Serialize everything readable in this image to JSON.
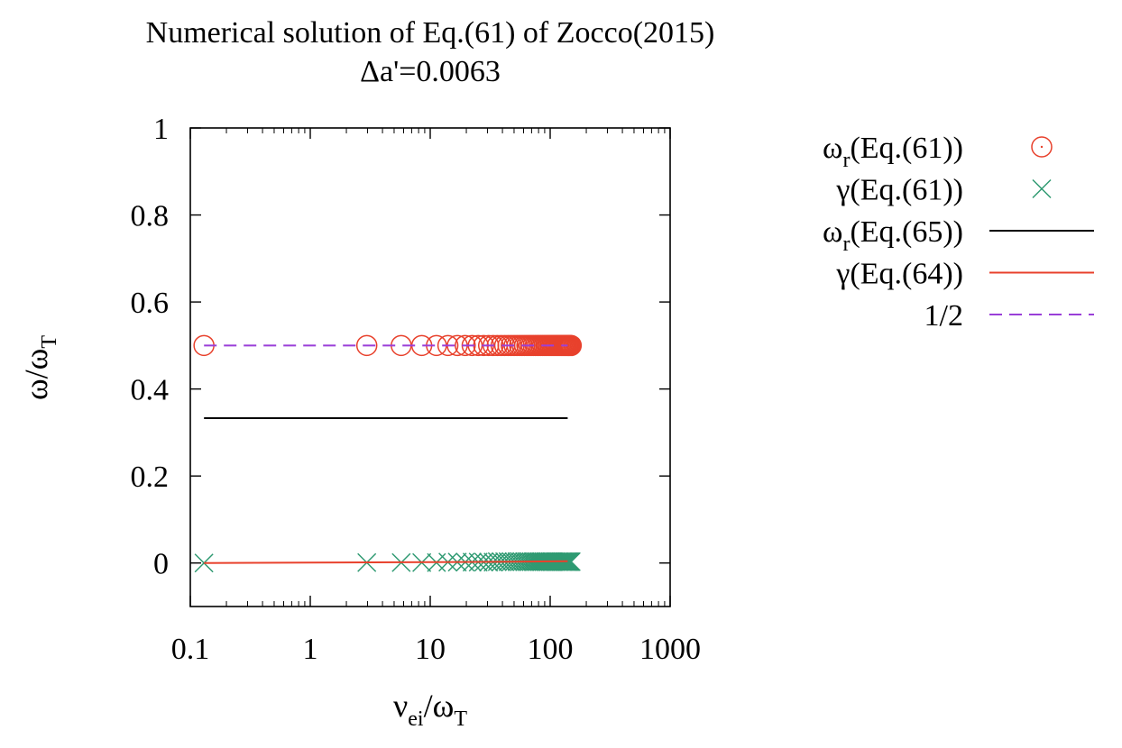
{
  "chart_data": {
    "type": "scatter",
    "title": "Numerical solution of Eq.(61) of Zocco(2015)",
    "subtitle": "Δa'=0.0063",
    "xlabel": {
      "main": "ν",
      "sub": "ei",
      "rest": "/ω",
      "sub2": "T"
    },
    "ylabel": {
      "main": "ω/ω",
      "sub": "T"
    },
    "xscale": "log",
    "xlim": [
      0.1,
      1000
    ],
    "ylim": [
      -0.1,
      1.0
    ],
    "xticks": [
      "0.1",
      "1",
      "10",
      "100",
      "1000"
    ],
    "yticks": [
      "0",
      "0.2",
      "0.4",
      "0.6",
      "0.8",
      "1"
    ],
    "legend_position": "outside-right",
    "series": [
      {
        "name": "ωr(Eq.(61))",
        "legend": {
          "main": "ω",
          "sub": "r",
          "rest": "(Eq.(61))"
        },
        "marker": "circle",
        "color": "#e8412c",
        "x": [
          0.13,
          2.96,
          5.73,
          8.5,
          11.27,
          14.04,
          16.81,
          19.58,
          22.35,
          25.12,
          27.9,
          30.67,
          33.44,
          36.21,
          38.98,
          41.75,
          44.52,
          47.29,
          50.06,
          52.83,
          55.6,
          58.37,
          61.14,
          63.91,
          66.68,
          69.45,
          72.22,
          75.0,
          77.77,
          80.54,
          83.31,
          86.08,
          88.85,
          91.62,
          94.39,
          97.16,
          99.93,
          102.7,
          105.47,
          108.24,
          111.01,
          113.78,
          116.55,
          119.32,
          122.1,
          124.87,
          127.64,
          130.41,
          133.18,
          135.95,
          138.72,
          141.49,
          144.26,
          147.03,
          149.8
        ],
        "y": [
          0.5,
          0.5,
          0.5,
          0.5,
          0.5,
          0.5,
          0.5,
          0.5,
          0.5,
          0.5,
          0.5,
          0.5,
          0.5,
          0.5,
          0.5,
          0.5,
          0.5,
          0.5,
          0.5,
          0.5,
          0.5,
          0.5,
          0.5,
          0.5,
          0.5,
          0.5,
          0.5,
          0.5,
          0.5,
          0.5,
          0.5,
          0.5,
          0.5,
          0.5,
          0.5,
          0.5,
          0.5,
          0.5,
          0.5,
          0.5,
          0.5,
          0.5,
          0.5,
          0.5,
          0.5,
          0.5,
          0.5,
          0.5,
          0.5,
          0.5,
          0.5,
          0.5,
          0.5,
          0.5,
          0.5
        ]
      },
      {
        "name": "γ(Eq.(61))",
        "legend": {
          "main": "γ(Eq.(61))",
          "sub": "",
          "rest": ""
        },
        "marker": "cross",
        "color": "#2f9a72",
        "x": [
          0.13,
          2.96,
          5.73,
          8.5,
          11.27,
          14.04,
          16.81,
          19.58,
          22.35,
          25.12,
          27.9,
          30.67,
          33.44,
          36.21,
          38.98,
          41.75,
          44.52,
          47.29,
          50.06,
          52.83,
          55.6,
          58.37,
          61.14,
          63.91,
          66.68,
          69.45,
          72.22,
          75.0,
          77.77,
          80.54,
          83.31,
          86.08,
          88.85,
          91.62,
          94.39,
          97.16,
          99.93,
          102.7,
          105.47,
          108.24,
          111.01,
          113.78,
          116.55,
          119.32,
          122.1,
          124.87,
          127.64,
          130.41,
          133.18,
          135.95,
          138.72,
          141.49,
          144.26,
          147.03,
          149.8
        ],
        "y": [
          0.0,
          0.001,
          0.001,
          0.001,
          0.001,
          0.002,
          0.002,
          0.002,
          0.002,
          0.002,
          0.002,
          0.002,
          0.002,
          0.003,
          0.003,
          0.003,
          0.003,
          0.003,
          0.003,
          0.003,
          0.003,
          0.003,
          0.003,
          0.003,
          0.003,
          0.003,
          0.003,
          0.003,
          0.003,
          0.003,
          0.003,
          0.003,
          0.003,
          0.003,
          0.003,
          0.003,
          0.003,
          0.003,
          0.003,
          0.003,
          0.003,
          0.003,
          0.003,
          0.003,
          0.003,
          0.003,
          0.003,
          0.003,
          0.003,
          0.003,
          0.003,
          0.003,
          0.003,
          0.003,
          0.003
        ]
      },
      {
        "name": "ωr(Eq.(65))",
        "legend": {
          "main": "ω",
          "sub": "r",
          "rest": "(Eq.(65))"
        },
        "marker": "line",
        "color": "#000000",
        "x": [
          0.13,
          140
        ],
        "y": [
          0.333,
          0.333
        ]
      },
      {
        "name": "γ(Eq.(64))",
        "legend": {
          "main": "γ(Eq.(64))",
          "sub": "",
          "rest": ""
        },
        "marker": "line",
        "color": "#e8412c",
        "x": [
          0.13,
          1,
          10,
          50,
          140
        ],
        "y": [
          0.0,
          0.001,
          0.002,
          0.003,
          0.004
        ]
      },
      {
        "name": "1/2",
        "legend": {
          "main": "1/2",
          "sub": "",
          "rest": ""
        },
        "marker": "dashed",
        "color": "#9a3fd8",
        "x": [
          0.13,
          140
        ],
        "y": [
          0.5,
          0.5
        ]
      }
    ]
  }
}
